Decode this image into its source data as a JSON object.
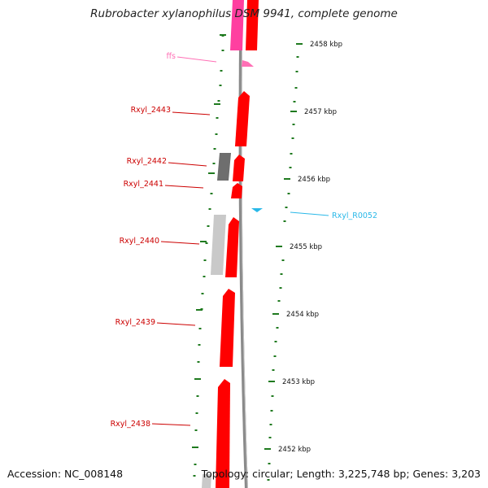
{
  "title": "Rubrobacter xylanophilus DSM 9941, complete genome",
  "footer": {
    "accession": "Accession: NC_008148",
    "info": "Topology: circular; Length: 3,225,748 bp; Genes: 3,203"
  },
  "colors": {
    "gene_fill": "#ff0000",
    "rna_fill": "#ff3fa0",
    "trna_fill": "#29b8e8",
    "other_light": "#c9c9c9",
    "other_dark": "#6e6e6e",
    "tick": "#1f7a1f",
    "backbone": "#8a8a8a",
    "gene_label": "#cc0000",
    "rna_label": "#ff6fb5",
    "trna_label": "#29b8e8"
  },
  "ticks": [
    {
      "label": "2458 kbp"
    },
    {
      "label": "2457 kbp"
    },
    {
      "label": "2456 kbp"
    },
    {
      "label": "2455 kbp"
    },
    {
      "label": "2454 kbp"
    },
    {
      "label": "2453 kbp"
    },
    {
      "label": "2452 kbp"
    }
  ],
  "features": [
    {
      "label": "ffs",
      "type": "rna"
    },
    {
      "label": "Rxyl_2443",
      "type": "gene"
    },
    {
      "label": "Rxyl_2442",
      "type": "gene"
    },
    {
      "label": "Rxyl_2441",
      "type": "gene"
    },
    {
      "label": "Rxyl_R0052",
      "type": "trna"
    },
    {
      "label": "Rxyl_2440",
      "type": "gene"
    },
    {
      "label": "Rxyl_2439",
      "type": "gene"
    },
    {
      "label": "Rxyl_2438",
      "type": "gene"
    }
  ]
}
